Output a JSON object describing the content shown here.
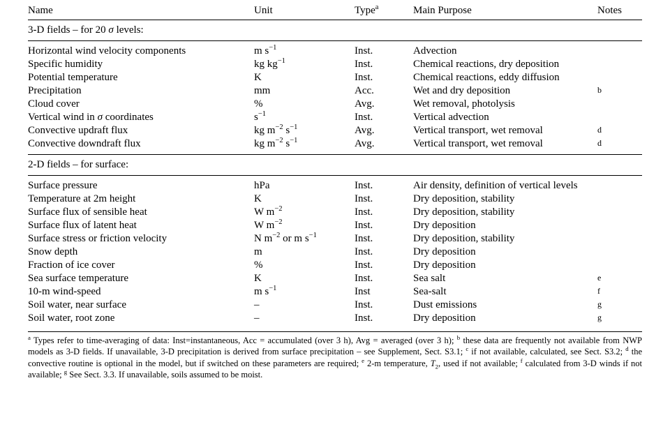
{
  "columns": {
    "name": "Name",
    "unit": "Unit",
    "type": "Type",
    "type_super": "a",
    "purpose": "Main Purpose",
    "notes": "Notes"
  },
  "section3d": "3-D fields – for 20 σ levels:",
  "section2d": "2-D fields – for surface:",
  "rows3d": [
    {
      "name": "Horizontal wind velocity components",
      "unit_html": "m s<sup>−1</sup>",
      "type": "Inst.",
      "purpose": "Advection",
      "note": ""
    },
    {
      "name": "Specific humidity",
      "unit_html": "kg kg<sup>−1</sup>",
      "type": "Inst.",
      "purpose": "Chemical reactions, dry deposition",
      "note": ""
    },
    {
      "name": "Potential temperature",
      "unit_html": "K",
      "type": "Inst.",
      "purpose": "Chemical reactions, eddy diffusion",
      "note": ""
    },
    {
      "name": "Precipitation",
      "unit_html": "mm",
      "type": "Acc.",
      "purpose": "Wet and dry deposition",
      "note": "b"
    },
    {
      "name": "Cloud cover",
      "unit_html": "%",
      "type": "Avg.",
      "purpose": "Wet removal, photolysis",
      "note": ""
    },
    {
      "name_html": "Vertical wind in <span class='sigma'>σ</span> coordinates",
      "unit_html": "s<sup>−1</sup>",
      "type": "Inst.",
      "purpose": "Vertical advection",
      "note": ""
    },
    {
      "name": "Convective updraft flux",
      "unit_html": "kg m<sup>−2</sup> s<sup>−1</sup>",
      "type": "Avg.",
      "purpose": "Vertical transport, wet removal",
      "note": "d"
    },
    {
      "name": "Convective downdraft flux",
      "unit_html": "kg m<sup>−2</sup> s<sup>−1</sup>",
      "type": "Avg.",
      "purpose": "Vertical transport, wet removal",
      "note": "d"
    }
  ],
  "rows2d": [
    {
      "name": "Surface pressure",
      "unit_html": "hPa",
      "type": "Inst.",
      "purpose": "Air density, definition of vertical levels",
      "note": ""
    },
    {
      "name": "Temperature at 2m height",
      "unit_html": "K",
      "type": "Inst.",
      "purpose": "Dry deposition, stability",
      "note": ""
    },
    {
      "name": "Surface flux of sensible heat",
      "unit_html": "W m<sup>−2</sup>",
      "type": "Inst.",
      "purpose": "Dry deposition, stability",
      "note": ""
    },
    {
      "name": "Surface flux of latent heat",
      "unit_html": "W m<sup>−2</sup>",
      "type": "Inst.",
      "purpose": "Dry deposition",
      "note": ""
    },
    {
      "name": "Surface stress or friction velocity",
      "unit_html": "N m<sup>−2</sup> or m s<sup>−1</sup>",
      "type": "Inst.",
      "purpose": "Dry deposition, stability",
      "note": ""
    },
    {
      "name": "Snow depth",
      "unit_html": "m",
      "type": "Inst.",
      "purpose": "Dry deposition",
      "note": ""
    },
    {
      "name": "Fraction of ice cover",
      "unit_html": "%",
      "type": "Inst.",
      "purpose": "Dry deposition",
      "note": ""
    },
    {
      "name": "Sea surface temperature",
      "unit_html": "K",
      "type": "Inst.",
      "purpose": "Sea salt",
      "note": "e"
    },
    {
      "name": "10-m wind-speed",
      "unit_html": "m s<sup>−1</sup>",
      "type": "Inst",
      "purpose": "Sea-salt",
      "note": "f"
    },
    {
      "name": "Soil water, near surface",
      "unit_html": "–",
      "type": "Inst.",
      "purpose": "Dust emissions",
      "note": "g"
    },
    {
      "name": "Soil water, root zone",
      "unit_html": "–",
      "type": "Inst.",
      "purpose": "Dry deposition",
      "note": "g"
    }
  ],
  "footnotes_html": "<sup>a</sup> Types refer to time-averaging of data: Inst=instantaneous, Acc = accumulated (over 3 h), Avg = averaged (over 3 h); <sup>b</sup> these data are frequently not available from NWP models as 3-D fields. If unavailable, 3-D precipitation is derived from surface precipitation – see Supplement, Sect. S3.1; <sup>c</sup> if not available, calculated, see Sect. S3.2; <sup>d</sup> the convective routine is optional in the model, but if switched on these parameters are required; <sup>e</sup> 2-m temperature, <span class='ital'>T</span><sub>2</sub>, used if not available; <sup>f</sup> calculated from 3-D winds if not available; <sup>g</sup> See Sect. 3.3. If unavailable, soils assumed to be moist."
}
